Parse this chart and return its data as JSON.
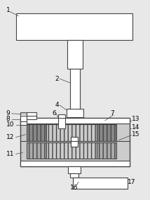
{
  "bg_color": "#e8e8e8",
  "lc": "#444444",
  "white": "#ffffff",
  "dark_gray": "#888888",
  "mid_gray": "#aaaaaa",
  "light_gray": "#cccccc",
  "fs": 6.5,
  "lw": 0.8
}
